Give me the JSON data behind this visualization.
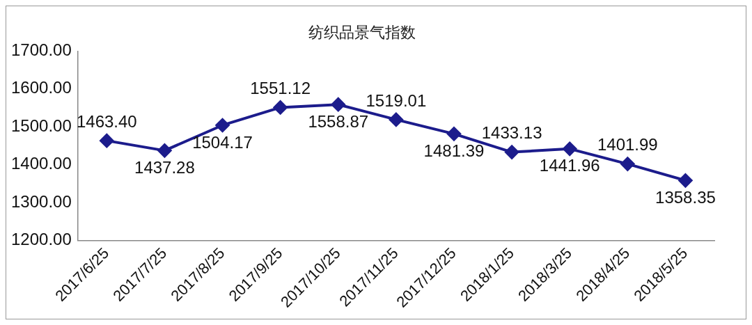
{
  "chart_data": {
    "type": "line",
    "title": "纺织品景气指数",
    "categories": [
      "2017/6/25",
      "2017/7/25",
      "2017/8/25",
      "2017/9/25",
      "2017/10/25",
      "2017/11/25",
      "2017/12/25",
      "2018/1/25",
      "2018/3/25",
      "2018/4/25",
      "2018/5/25"
    ],
    "series": [
      {
        "color": "#1c1c8c",
        "values": [
          1463.4,
          1437.28,
          1504.17,
          1551.12,
          1558.87,
          1519.01,
          1481.39,
          1433.13,
          1441.96,
          1401.99,
          1358.35
        ],
        "value_labels": [
          "1463.40",
          "1437.28",
          "1504.17",
          "1551.12",
          "1558.87",
          "1519.01",
          "1481.39",
          "1433.13",
          "1441.96",
          "1401.99",
          "1358.35"
        ]
      }
    ],
    "ylim": [
      1200,
      1700
    ],
    "yticks": [
      {
        "value": 1200,
        "label": "1200.00"
      },
      {
        "value": 1300,
        "label": "1300.00"
      },
      {
        "value": 1400,
        "label": "1400.00"
      },
      {
        "value": 1500,
        "label": "1500.00"
      },
      {
        "value": 1600,
        "label": "1600.00"
      },
      {
        "value": 1700,
        "label": "1700.00"
      }
    ],
    "grid": false,
    "legend": false,
    "marker": "diamond",
    "line_style": "solid"
  }
}
